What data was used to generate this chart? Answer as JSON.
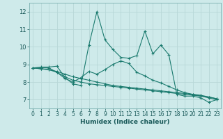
{
  "title": "",
  "xlabel": "Humidex (Indice chaleur)",
  "bg_color": "#ceeaea",
  "grid_color": "#b8d8d8",
  "line_color": "#1a7a6e",
  "xlim": [
    -0.5,
    23.5
  ],
  "ylim": [
    6.5,
    12.5
  ],
  "yticks": [
    7,
    8,
    9,
    10,
    11,
    12
  ],
  "xticks": [
    0,
    1,
    2,
    3,
    4,
    5,
    6,
    7,
    8,
    9,
    10,
    11,
    12,
    13,
    14,
    15,
    16,
    17,
    18,
    19,
    20,
    21,
    22,
    23
  ],
  "series": [
    [
      8.8,
      8.85,
      8.85,
      8.9,
      8.25,
      7.9,
      7.8,
      10.1,
      12.0,
      10.4,
      9.85,
      9.4,
      9.35,
      9.5,
      10.9,
      9.6,
      10.1,
      9.55,
      7.3,
      7.2,
      7.2,
      7.1,
      6.85,
      7.0
    ],
    [
      8.8,
      8.8,
      8.8,
      8.55,
      8.2,
      8.0,
      8.25,
      8.6,
      8.45,
      8.7,
      9.0,
      9.2,
      9.05,
      8.55,
      8.35,
      8.1,
      7.95,
      7.75,
      7.55,
      7.4,
      7.3,
      7.2,
      7.1,
      7.0
    ],
    [
      8.8,
      8.75,
      8.7,
      8.55,
      8.3,
      8.1,
      8.0,
      7.9,
      7.85,
      7.8,
      7.75,
      7.7,
      7.65,
      7.6,
      7.55,
      7.5,
      7.45,
      7.4,
      7.35,
      7.3,
      7.25,
      7.2,
      7.15,
      7.05
    ],
    [
      8.8,
      8.75,
      8.7,
      8.6,
      8.45,
      8.3,
      8.2,
      8.1,
      8.0,
      7.9,
      7.8,
      7.75,
      7.7,
      7.65,
      7.6,
      7.55,
      7.5,
      7.45,
      7.4,
      7.35,
      7.3,
      7.25,
      7.15,
      7.05
    ]
  ],
  "marker": "+",
  "markersize": 3,
  "linewidth": 0.8,
  "tick_fontsize": 5.5,
  "xlabel_fontsize": 6.5
}
